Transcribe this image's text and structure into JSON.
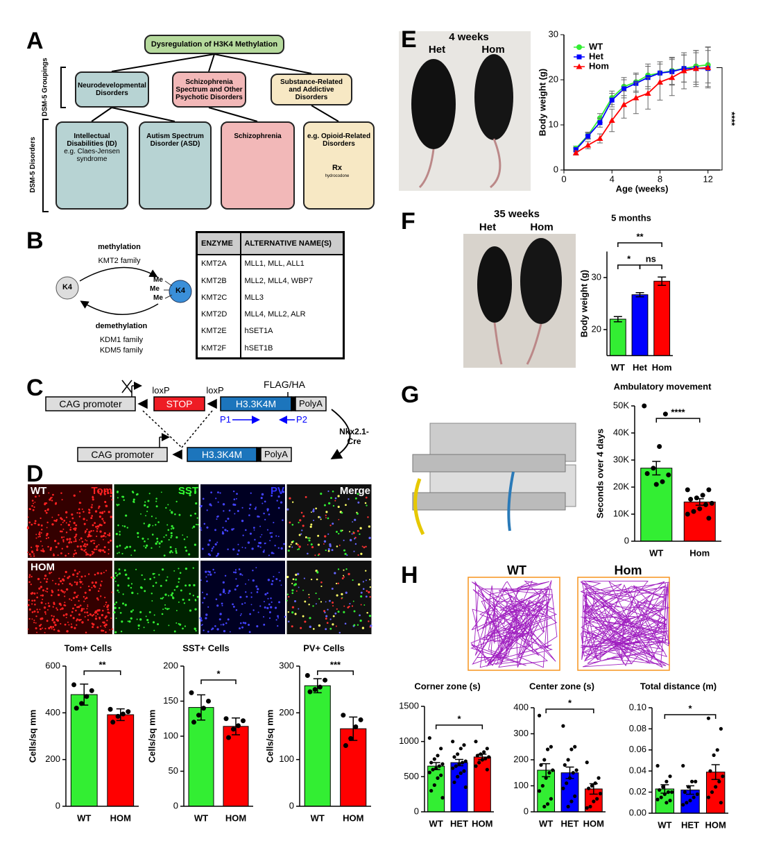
{
  "panel_labels": [
    "A",
    "B",
    "C",
    "D",
    "E",
    "F",
    "G",
    "H"
  ],
  "a": {
    "title": "Dysregulation of H3K4 Methylation",
    "groupings_label": "DSM-5 Groupings",
    "disorders_label": "DSM-5 Disorders",
    "groupings": [
      "Neurodevelopmental Disorders",
      "Schizophrenia Spectrum and Other Psychotic Disorders",
      "Substance-Related and Addictive Disorders"
    ],
    "disorders": [
      {
        "label": "Intellectual Disabilities (ID)",
        "note": "e.g. Claes-Jensen syndrome"
      },
      {
        "label": "Autism Spectrum Disorder (ASD)"
      },
      {
        "label": "Schizophrenia"
      },
      {
        "label": "e.g. Opioid-Related Disorders"
      }
    ],
    "rx": "Rx",
    "drug": "hydrocodone"
  },
  "b": {
    "methylation": "methylation",
    "methyl_enzymes": "KMT2 family",
    "demethylation": "demethylation",
    "demethyl_enzymes": [
      "KDM1 family",
      "KDM5 family"
    ],
    "residue": "K4",
    "methyl": "Me",
    "table": {
      "header": [
        "ENZYME",
        "ALTERNATIVE NAME(S)"
      ],
      "rows": [
        [
          "KMT2A",
          "MLL1, MLL, ALL1"
        ],
        [
          "KMT2B",
          "MLL2, MLL4, WBP7"
        ],
        [
          "KMT2C",
          "MLL3"
        ],
        [
          "KMT2D",
          "MLL4, MLL2, ALR"
        ],
        [
          "KMT2E",
          "hSET1A"
        ],
        [
          "KMT2F",
          "hSET1B"
        ]
      ]
    }
  },
  "c": {
    "promoter": "CAG promoter",
    "loxp": "loxP",
    "stop": "STOP",
    "tag": "FLAG/HA",
    "transgene": "H3.3K4M",
    "polya": "PolyA",
    "primers": [
      "P1",
      "P2"
    ],
    "cre": "Nkx2.1-Cre"
  },
  "d": {
    "genotypes": [
      "WT",
      "HOM"
    ],
    "channels": [
      "Tom",
      "SST",
      "PV",
      "Merge"
    ]
  },
  "e": {
    "age": "4 weeks",
    "genotypes": [
      "Het",
      "Hom"
    ]
  },
  "f": {
    "age": "35 weeks",
    "genotypes": [
      "Het",
      "Hom"
    ]
  },
  "h": {
    "genotypes": [
      "WT",
      "Hom"
    ]
  },
  "chart_data": [
    {
      "type": "bar",
      "title": "Tom+ Cells",
      "ylabel": "Cells/sq mm",
      "categories": [
        "WT",
        "HOM"
      ],
      "values": [
        478,
        392
      ],
      "errors": [
        45,
        25
      ],
      "points": [
        [
          520,
          495,
          470,
          440,
          420
        ],
        [
          415,
          405,
          395,
          385,
          360
        ]
      ],
      "colors": [
        "#33ee33",
        "#ff0000"
      ],
      "ylim": [
        0,
        600
      ],
      "yticks": [
        0,
        200,
        400,
        600
      ],
      "annotations": [
        "**"
      ]
    },
    {
      "type": "bar",
      "title": "SST+ Cells",
      "ylabel": "Cells/sq mm",
      "categories": [
        "WT",
        "HOM"
      ],
      "values": [
        141,
        114
      ],
      "errors": [
        18,
        12
      ],
      "points": [
        [
          162,
          150,
          140,
          130,
          120
        ],
        [
          125,
          122,
          115,
          110,
          98
        ]
      ],
      "colors": [
        "#33ee33",
        "#ff0000"
      ],
      "ylim": [
        0,
        200
      ],
      "yticks": [
        0,
        50,
        100,
        150,
        200
      ],
      "annotations": [
        "*"
      ]
    },
    {
      "type": "bar",
      "title": "PV+ Cells",
      "ylabel": "Cells/sq mm",
      "categories": [
        "WT",
        "HOM"
      ],
      "values": [
        258,
        166
      ],
      "errors": [
        15,
        25
      ],
      "points": [
        [
          280,
          270,
          255,
          250,
          245
        ],
        [
          195,
          185,
          170,
          145,
          130
        ]
      ],
      "colors": [
        "#33ee33",
        "#ff0000"
      ],
      "ylim": [
        0,
        300
      ],
      "yticks": [
        0,
        100,
        200,
        300
      ],
      "annotations": [
        "***"
      ]
    },
    {
      "type": "line",
      "xlabel": "Age (weeks)",
      "ylabel": "Body weight (g)",
      "x": [
        1,
        2,
        3,
        4,
        5,
        6,
        7,
        8,
        9,
        10,
        11,
        12
      ],
      "xlim": [
        0,
        13
      ],
      "xticks": [
        0,
        4,
        8,
        12
      ],
      "ylim": [
        0,
        30
      ],
      "yticks": [
        0,
        10,
        20,
        30
      ],
      "annotations": [
        "****"
      ],
      "series": [
        {
          "name": "WT",
          "color": "#33ee33",
          "marker": "circle",
          "values": [
            4.8,
            7.7,
            11.5,
            16,
            18.5,
            19.5,
            21,
            21.5,
            22,
            22.5,
            23,
            23.3
          ],
          "errors": [
            0.5,
            0.7,
            1,
            1.5,
            2,
            2,
            2.5,
            2.5,
            3,
            3,
            3.5,
            4
          ]
        },
        {
          "name": "Het",
          "color": "#0000ff",
          "marker": "square",
          "values": [
            4.5,
            7.5,
            10.5,
            15.5,
            18,
            19.2,
            20.5,
            21.5,
            21.8,
            22.5,
            22.5,
            22.5
          ],
          "errors": [
            0.5,
            0.7,
            1,
            1.5,
            2,
            2,
            2.5,
            2.5,
            3,
            3,
            3.5,
            4
          ]
        },
        {
          "name": "Hom",
          "color": "#ff0000",
          "marker": "triangle",
          "values": [
            3.8,
            5.5,
            7,
            11,
            14.5,
            16,
            17,
            19.5,
            20.5,
            22,
            22.5,
            22.7
          ],
          "errors": [
            0.5,
            0.8,
            1,
            2.5,
            3,
            3.5,
            3.5,
            4,
            4,
            4,
            4,
            4.5
          ]
        }
      ]
    },
    {
      "type": "bar",
      "title": "5 months",
      "ylabel": "Body weight (g)",
      "categories": [
        "WT",
        "Het",
        "Hom"
      ],
      "values": [
        22,
        26.7,
        29.3
      ],
      "errors": [
        0.5,
        0.4,
        0.8
      ],
      "colors": [
        "#33ee33",
        "#0000ff",
        "#ff0000"
      ],
      "ylim": [
        15,
        35
      ],
      "yticks": [
        20,
        30
      ],
      "annotations": [
        "**",
        "*",
        "ns"
      ]
    },
    {
      "type": "bar",
      "title": "Ambulatory movement",
      "ylabel": "Seconds over 4 days",
      "categories": [
        "WT",
        "Hom"
      ],
      "values": [
        27000,
        14500
      ],
      "errors": [
        2500,
        1200
      ],
      "points": [
        [
          50000,
          47000,
          35000,
          27000,
          25000,
          24500,
          22000,
          21000
        ],
        [
          19000,
          19000,
          17000,
          16000,
          15500,
          14000,
          13500,
          12000,
          11000,
          10000,
          8500
        ]
      ],
      "colors": [
        "#33ee33",
        "#ff0000"
      ],
      "ylim": [
        0,
        50000
      ],
      "yticks": [
        0,
        {
          "value": 10000,
          "label": "10K"
        },
        {
          "value": 20000,
          "label": "20K"
        },
        {
          "value": 30000,
          "label": "30K"
        },
        {
          "value": 40000,
          "label": "40K"
        },
        {
          "value": 50000,
          "label": "50K"
        }
      ],
      "annotations": [
        "****"
      ]
    },
    {
      "type": "bar",
      "title": "Corner zone (s)",
      "categories": [
        "WT",
        "HET",
        "HOM"
      ],
      "values": [
        650,
        700,
        780
      ],
      "errors": [
        50,
        45,
        40
      ],
      "points": [
        [
          1050,
          900,
          800,
          750,
          700,
          680,
          650,
          620,
          600,
          560,
          520,
          480,
          380,
          300,
          200
        ],
        [
          1000,
          950,
          900,
          820,
          780,
          720,
          700,
          680,
          650,
          620,
          580,
          550,
          500,
          420,
          350
        ],
        [
          1000,
          900,
          850,
          820,
          800,
          780,
          760,
          740,
          700,
          650,
          600
        ]
      ],
      "colors": [
        "#33ee33",
        "#0000ff",
        "#ff0000"
      ],
      "ylim": [
        0,
        1500
      ],
      "yticks": [
        0,
        500,
        1000,
        1500
      ],
      "annotations": [
        "*"
      ]
    },
    {
      "type": "bar",
      "title": "Center zone (s)",
      "categories": [
        "WT",
        "HET",
        "HOM"
      ],
      "values": [
        160,
        150,
        88
      ],
      "errors": [
        25,
        22,
        20
      ],
      "points": [
        [
          370,
          250,
          240,
          200,
          180,
          160,
          150,
          130,
          100,
          80,
          50,
          30,
          20
        ],
        [
          330,
          250,
          240,
          200,
          180,
          160,
          150,
          130,
          110,
          90,
          60,
          40,
          20
        ],
        [
          190,
          130,
          110,
          100,
          90,
          70,
          50,
          40,
          20,
          15
        ]
      ],
      "colors": [
        "#33ee33",
        "#0000ff",
        "#ff0000"
      ],
      "ylim": [
        0,
        400
      ],
      "yticks": [
        0,
        100,
        200,
        300,
        400
      ],
      "annotations": [
        "*"
      ]
    },
    {
      "type": "bar",
      "title": "Total distance (m)",
      "categories": [
        "WT",
        "HET",
        "HOM"
      ],
      "values": [
        0.023,
        0.022,
        0.039
      ],
      "errors": [
        0.004,
        0.004,
        0.007
      ],
      "points": [
        [
          0.045,
          0.035,
          0.03,
          0.025,
          0.022,
          0.02,
          0.02,
          0.018,
          0.015,
          0.013,
          0.012,
          0.01
        ],
        [
          0.045,
          0.03,
          0.03,
          0.025,
          0.02,
          0.018,
          0.015,
          0.012,
          0.01,
          0.008
        ],
        [
          0.09,
          0.08,
          0.06,
          0.055,
          0.04,
          0.035,
          0.03,
          0.025,
          0.02,
          0.015,
          0.01
        ]
      ],
      "colors": [
        "#33ee33",
        "#0000ff",
        "#ff0000"
      ],
      "ylim": [
        0,
        0.1
      ],
      "yticks": [
        {
          "value": 0,
          "label": "0.00"
        },
        {
          "value": 0.02,
          "label": "0.02"
        },
        {
          "value": 0.04,
          "label": "0.04"
        },
        {
          "value": 0.06,
          "label": "0.06"
        },
        {
          "value": 0.08,
          "label": "0.08"
        },
        {
          "value": 0.1,
          "label": "0.10"
        }
      ],
      "annotations": [
        "*"
      ]
    }
  ]
}
